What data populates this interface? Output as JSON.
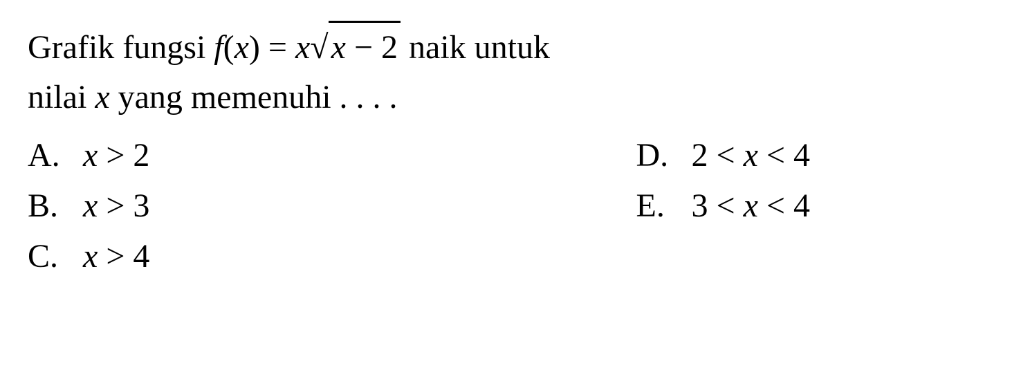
{
  "question": {
    "line1_pre": "Grafik fungsi ",
    "fx": "f",
    "fx_paren_open": "(",
    "fx_var": "x",
    "fx_paren_close": ")",
    "equals": " = ",
    "x_var": "x",
    "sqrt_var": "x",
    "sqrt_rest": " − 2",
    "line1_post": " naik untuk",
    "line2_pre": "nilai ",
    "line2_var": "x",
    "line2_post": " yang memenuhi . . . ."
  },
  "options": {
    "a": {
      "label": "A.",
      "var": "x",
      "rest": " > 2"
    },
    "b": {
      "label": "B.",
      "var": "x",
      "rest": " > 3"
    },
    "c": {
      "label": "C.",
      "var": "x",
      "rest": " > 4"
    },
    "d": {
      "label": "D.",
      "pre": "2 < ",
      "var": "x",
      "rest": " < 4"
    },
    "e": {
      "label": "E.",
      "pre": "3 < ",
      "var": "x",
      "rest": " < 4"
    }
  },
  "colors": {
    "background": "#ffffff",
    "text": "#000000"
  },
  "typography": {
    "font_family": "Times New Roman",
    "question_fontsize": 48,
    "option_fontsize": 48
  }
}
